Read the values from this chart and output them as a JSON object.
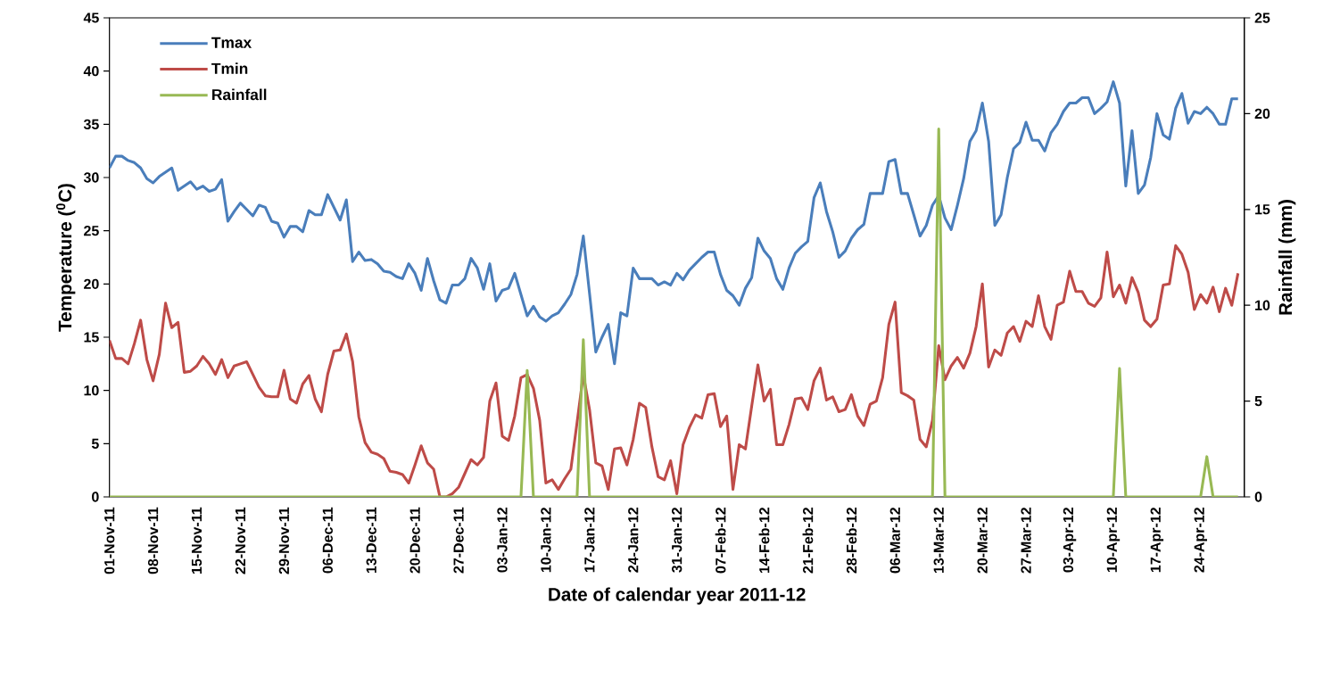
{
  "chart_data": {
    "type": "line",
    "xlabel": "Date of calendar year 2011-12",
    "ylabel": "Temperature ($^{0}$C)",
    "y2label": "Rainfall (mm)",
    "legend": "top left",
    "xlim": [
      "2011-11-01",
      "2012-05-01"
    ],
    "ylim": [
      0,
      45
    ],
    "yticks": [
      0,
      5,
      10,
      15,
      20,
      25,
      30,
      35,
      40,
      45
    ],
    "y2lim": [
      0,
      25
    ],
    "y2ticks": [
      0,
      5,
      10,
      15,
      20,
      25
    ],
    "xticks": [
      {
        "value": "2011-11-01",
        "label": "01-Nov-11"
      },
      {
        "value": "2011-11-08",
        "label": "08-Nov-11"
      },
      {
        "value": "2011-11-15",
        "label": "15-Nov-11"
      },
      {
        "value": "2011-11-22",
        "label": "22-Nov-11"
      },
      {
        "value": "2011-11-29",
        "label": "29-Nov-11"
      },
      {
        "value": "2011-12-06",
        "label": "06-Dec-11"
      },
      {
        "value": "2011-12-13",
        "label": "13-Dec-11"
      },
      {
        "value": "2011-12-20",
        "label": "20-Dec-11"
      },
      {
        "value": "2011-12-27",
        "label": "27-Dec-11"
      },
      {
        "value": "2012-01-03",
        "label": "03-Jan-12"
      },
      {
        "value": "2012-01-10",
        "label": "10-Jan-12"
      },
      {
        "value": "2012-01-17",
        "label": "17-Jan-12"
      },
      {
        "value": "2012-01-24",
        "label": "24-Jan-12"
      },
      {
        "value": "2012-01-31",
        "label": "31-Jan-12"
      },
      {
        "value": "2012-02-07",
        "label": "07-Feb-12"
      },
      {
        "value": "2012-02-14",
        "label": "14-Feb-12"
      },
      {
        "value": "2012-02-21",
        "label": "21-Feb-12"
      },
      {
        "value": "2012-02-28",
        "label": "28-Feb-12"
      },
      {
        "value": "2012-03-06",
        "label": "06-Mar-12"
      },
      {
        "value": "2012-03-13",
        "label": "13-Mar-12"
      },
      {
        "value": "2012-03-20",
        "label": "20-Mar-12"
      },
      {
        "value": "2012-03-27",
        "label": "27-Mar-12"
      },
      {
        "value": "2012-04-03",
        "label": "03-Apr-12"
      },
      {
        "value": "2012-04-10",
        "label": "10-Apr-12"
      },
      {
        "value": "2012-04-17",
        "label": "17-Apr-12"
      },
      {
        "value": "2012-04-24",
        "label": "24-Apr-12"
      }
    ],
    "x": [
      "2011-11-01",
      "2011-11-02",
      "2011-11-03",
      "2011-11-04",
      "2011-11-05",
      "2011-11-06",
      "2011-11-07",
      "2011-11-08",
      "2011-11-09",
      "2011-11-10",
      "2011-11-11",
      "2011-11-12",
      "2011-11-13",
      "2011-11-14",
      "2011-11-15",
      "2011-11-16",
      "2011-11-17",
      "2011-11-18",
      "2011-11-19",
      "2011-11-20",
      "2011-11-21",
      "2011-11-22",
      "2011-11-23",
      "2011-11-24",
      "2011-11-25",
      "2011-11-26",
      "2011-11-27",
      "2011-11-28",
      "2011-11-29",
      "2011-11-30",
      "2011-12-01",
      "2011-12-02",
      "2011-12-03",
      "2011-12-04",
      "2011-12-05",
      "2011-12-06",
      "2011-12-07",
      "2011-12-08",
      "2011-12-09",
      "2011-12-10",
      "2011-12-11",
      "2011-12-12",
      "2011-12-13",
      "2011-12-14",
      "2011-12-15",
      "2011-12-16",
      "2011-12-17",
      "2011-12-18",
      "2011-12-19",
      "2011-12-20",
      "2011-12-21",
      "2011-12-22",
      "2011-12-23",
      "2011-12-24",
      "2011-12-25",
      "2011-12-26",
      "2011-12-27",
      "2011-12-28",
      "2011-12-29",
      "2011-12-30",
      "2011-12-31",
      "2012-01-01",
      "2012-01-02",
      "2012-01-03",
      "2012-01-04",
      "2012-01-05",
      "2012-01-06",
      "2012-01-07",
      "2012-01-08",
      "2012-01-09",
      "2012-01-10",
      "2012-01-11",
      "2012-01-12",
      "2012-01-13",
      "2012-01-14",
      "2012-01-15",
      "2012-01-16",
      "2012-01-17",
      "2012-01-18",
      "2012-01-19",
      "2012-01-20",
      "2012-01-21",
      "2012-01-22",
      "2012-01-23",
      "2012-01-24",
      "2012-01-25",
      "2012-01-26",
      "2012-01-27",
      "2012-01-28",
      "2012-01-29",
      "2012-01-30",
      "2012-01-31",
      "2012-02-01",
      "2012-02-02",
      "2012-02-03",
      "2012-02-04",
      "2012-02-05",
      "2012-02-06",
      "2012-02-07",
      "2012-02-08",
      "2012-02-09",
      "2012-02-10",
      "2012-02-11",
      "2012-02-12",
      "2012-02-13",
      "2012-02-14",
      "2012-02-15",
      "2012-02-16",
      "2012-02-17",
      "2012-02-18",
      "2012-02-19",
      "2012-02-20",
      "2012-02-21",
      "2012-02-22",
      "2012-02-23",
      "2012-02-24",
      "2012-02-25",
      "2012-02-26",
      "2012-02-27",
      "2012-02-28",
      "2012-02-29",
      "2012-03-01",
      "2012-03-02",
      "2012-03-03",
      "2012-03-04",
      "2012-03-05",
      "2012-03-06",
      "2012-03-07",
      "2012-03-08",
      "2012-03-09",
      "2012-03-10",
      "2012-03-11",
      "2012-03-12",
      "2012-03-13",
      "2012-03-14",
      "2012-03-15",
      "2012-03-16",
      "2012-03-17",
      "2012-03-18",
      "2012-03-19",
      "2012-03-20",
      "2012-03-21",
      "2012-03-22",
      "2012-03-23",
      "2012-03-24",
      "2012-03-25",
      "2012-03-26",
      "2012-03-27",
      "2012-03-28",
      "2012-03-29",
      "2012-03-30",
      "2012-03-31",
      "2012-04-01",
      "2012-04-02",
      "2012-04-03",
      "2012-04-04",
      "2012-04-05",
      "2012-04-06",
      "2012-04-07",
      "2012-04-08",
      "2012-04-09",
      "2012-04-10",
      "2012-04-11",
      "2012-04-12",
      "2012-04-13",
      "2012-04-14",
      "2012-04-15",
      "2012-04-16",
      "2012-04-17",
      "2012-04-18",
      "2012-04-19",
      "2012-04-20",
      "2012-04-21",
      "2012-04-22",
      "2012-04-23",
      "2012-04-24",
      "2012-04-25",
      "2012-04-26",
      "2012-04-27",
      "2012-04-28",
      "2012-04-29",
      "2012-04-30"
    ],
    "series": [
      {
        "name": "Tmax",
        "color": "#4a7ebb",
        "values": [
          30.9,
          32.0,
          32.0,
          31.6,
          31.4,
          30.9,
          29.9,
          29.5,
          30.1,
          30.5,
          30.9,
          28.8,
          29.2,
          29.6,
          28.9,
          29.2,
          28.7,
          28.9,
          29.8,
          25.9,
          26.8,
          27.6,
          27.0,
          26.4,
          27.4,
          27.2,
          25.9,
          25.7,
          24.4,
          25.4,
          25.4,
          24.9,
          26.9,
          26.5,
          26.5,
          28.4,
          27.2,
          26.0,
          27.9,
          22.1,
          23.0,
          22.2,
          22.3,
          21.9,
          21.2,
          21.1,
          20.7,
          20.5,
          21.9,
          21.0,
          19.4,
          22.4,
          20.3,
          18.5,
          18.2,
          19.9,
          19.9,
          20.5,
          22.4,
          21.5,
          19.5,
          21.9,
          18.4,
          19.4,
          19.6,
          21.0,
          19.0,
          17.0,
          17.9,
          16.9,
          16.5,
          17.0,
          17.3,
          18.1,
          19.0,
          20.9,
          24.5,
          19.1,
          13.6,
          15.0,
          16.2,
          12.5,
          17.3,
          17.0,
          21.5,
          20.5,
          20.5,
          20.5,
          19.9,
          20.2,
          19.9,
          21.0,
          20.4,
          21.3,
          21.9,
          22.5,
          23.0,
          23.0,
          20.9,
          19.4,
          18.9,
          18.0,
          19.6,
          20.6,
          24.3,
          23.1,
          22.4,
          20.5,
          19.5,
          21.5,
          22.9,
          23.5,
          24.0,
          28.1,
          29.5,
          26.8,
          24.9,
          22.5,
          23.1,
          24.3,
          25.1,
          25.6,
          28.5,
          28.5,
          28.5,
          31.5,
          31.7,
          28.5,
          28.5,
          26.5,
          24.5,
          25.5,
          27.4,
          28.3,
          26.2,
          25.1,
          27.4,
          29.9,
          33.4,
          34.4,
          37.0,
          33.4,
          25.5,
          26.5,
          30.0,
          32.7,
          33.3,
          35.2,
          33.5,
          33.5,
          32.5,
          34.2,
          35.0,
          36.2,
          37.0,
          37.0,
          37.5,
          37.5,
          36.0,
          36.5,
          37.1,
          39.0,
          37.0,
          29.2,
          34.4,
          28.5,
          29.3,
          31.9,
          36.0,
          34.0,
          33.6,
          36.5,
          37.9,
          35.1,
          36.2,
          36.0,
          36.6,
          36.0,
          35.0,
          35.0,
          37.4,
          37.4
        ]
      },
      {
        "name": "Tmin",
        "color": "#be4b48",
        "values": [
          14.7,
          13.0,
          13.0,
          12.5,
          14.4,
          16.6,
          12.9,
          10.9,
          13.4,
          18.2,
          15.9,
          16.4,
          11.7,
          11.8,
          12.3,
          13.2,
          12.5,
          11.5,
          12.9,
          11.2,
          12.3,
          12.5,
          12.7,
          11.5,
          10.3,
          9.5,
          9.4,
          9.4,
          11.9,
          9.2,
          8.8,
          10.6,
          11.4,
          9.2,
          8.0,
          11.5,
          13.7,
          13.8,
          15.3,
          12.7,
          7.5,
          5.1,
          4.2,
          4.0,
          3.6,
          2.4,
          2.3,
          2.1,
          1.3,
          3.0,
          4.8,
          3.2,
          2.6,
          0,
          0,
          0.3,
          0.9,
          2.2,
          3.5,
          3.0,
          3.7,
          9.0,
          10.7,
          5.7,
          5.3,
          7.6,
          11.2,
          11.5,
          10.2,
          7.2,
          1.3,
          1.6,
          0.7,
          1.7,
          2.6,
          7.0,
          11.5,
          8.2,
          3.2,
          2.9,
          0.7,
          4.5,
          4.6,
          3.0,
          5.4,
          8.8,
          8.4,
          4.7,
          1.9,
          1.6,
          3.4,
          0.3,
          4.9,
          6.5,
          7.7,
          7.4,
          9.6,
          9.7,
          6.6,
          7.6,
          0.7,
          4.9,
          4.5,
          8.5,
          12.4,
          9.0,
          10.1,
          4.9,
          4.9,
          6.8,
          9.2,
          9.3,
          8.2,
          10.9,
          12.1,
          9.1,
          9.4,
          8.0,
          8.2,
          9.6,
          7.6,
          6.7,
          8.7,
          9.0,
          11.2,
          16.2,
          18.3,
          9.8,
          9.5,
          9.1,
          5.4,
          4.7,
          7.2,
          14.2,
          11.0,
          12.3,
          13.1,
          12.1,
          13.5,
          16.0,
          20.0,
          12.2,
          13.8,
          13.3,
          15.4,
          16.0,
          14.6,
          16.5,
          16.0,
          18.9,
          16.0,
          14.8,
          18.0,
          18.3,
          21.2,
          19.3,
          19.3,
          18.2,
          17.9,
          18.7,
          23.0,
          18.8,
          19.9,
          18.2,
          20.6,
          19.2,
          16.6,
          16.0,
          16.7,
          19.9,
          20.0,
          23.6,
          22.8,
          21.1,
          17.6,
          19.0,
          18.2,
          19.7,
          17.4,
          19.6,
          18.0,
          21.0
        ]
      },
      {
        "name": "Rainfall",
        "color": "#98b954",
        "axis": "y2",
        "values": [
          0,
          0,
          0,
          0,
          0,
          0,
          0,
          0,
          0,
          0,
          0,
          0,
          0,
          0,
          0,
          0,
          0,
          0,
          0,
          0,
          0,
          0,
          0,
          0,
          0,
          0,
          0,
          0,
          0,
          0,
          0,
          0,
          0,
          0,
          0,
          0,
          0,
          0,
          0,
          0,
          0,
          0,
          0,
          0,
          0,
          0,
          0,
          0,
          0,
          0,
          0,
          0,
          0,
          0,
          0,
          0,
          0,
          0,
          0,
          0,
          0,
          0,
          0,
          0,
          0,
          0,
          0,
          6.6,
          0,
          0,
          0,
          0,
          0,
          0,
          0,
          0,
          8.2,
          0,
          0,
          0,
          0,
          0,
          0,
          0,
          0,
          0,
          0,
          0,
          0,
          0,
          0,
          0,
          0,
          0,
          0,
          0,
          0,
          0,
          0,
          0,
          0,
          0,
          0,
          0,
          0,
          0,
          0,
          0,
          0,
          0,
          0,
          0,
          0,
          0,
          0,
          0,
          0,
          0,
          0,
          0,
          0,
          0,
          0,
          0,
          0,
          0,
          0,
          0,
          0,
          0,
          0,
          0,
          0,
          19.2,
          0,
          0,
          0,
          0,
          0,
          0,
          0,
          0,
          0,
          0,
          0,
          0,
          0,
          0,
          0,
          0,
          0,
          0,
          0,
          0,
          0,
          0,
          0,
          0,
          0,
          0,
          0,
          0,
          6.7,
          0,
          0,
          0,
          0,
          0,
          0,
          0,
          0,
          0,
          0,
          0,
          0,
          0,
          2.1,
          0,
          0,
          0,
          0,
          0
        ]
      }
    ]
  }
}
